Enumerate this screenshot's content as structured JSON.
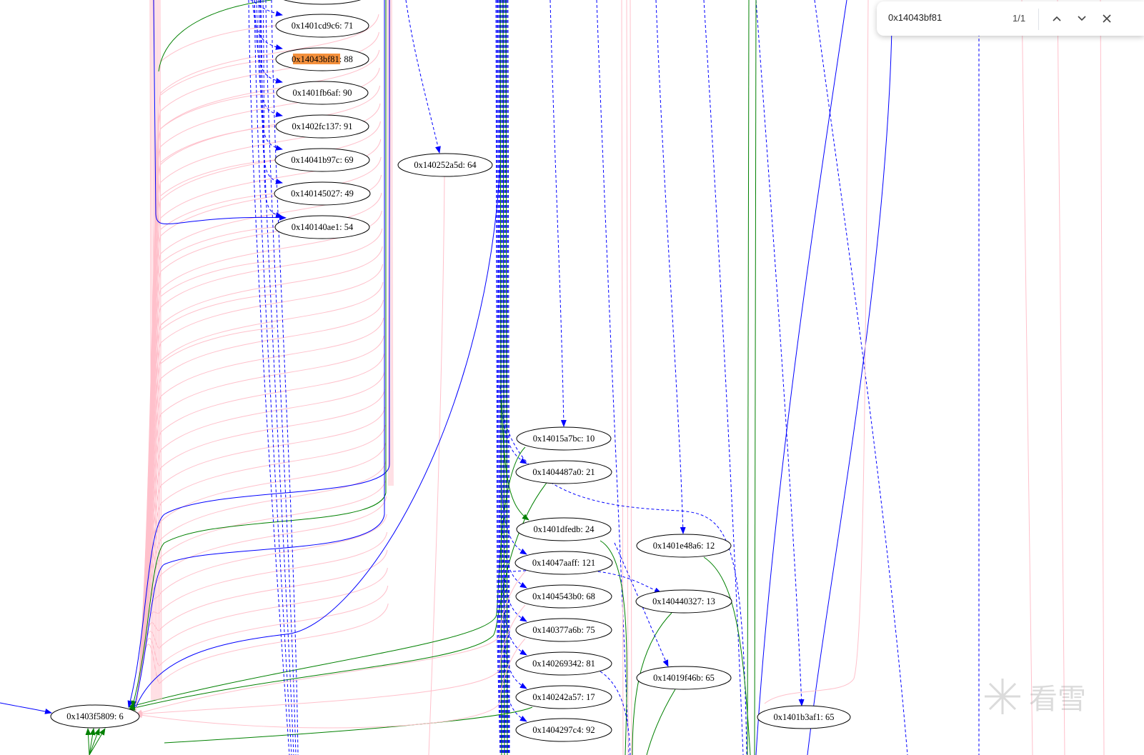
{
  "find_bar": {
    "query": "0x14043bf81",
    "match_count": "1/1",
    "icons": {
      "previous": "chevron-up-icon",
      "next": "chevron-down-icon",
      "close": "close-icon"
    }
  },
  "graph": {
    "highlight_color": "#f4903c",
    "edge_colors": {
      "call": "#0000ff",
      "branch": "#008000",
      "ref": "#ffc0cb"
    },
    "nodes": {
      "n71": {
        "addr": "0x1401cd9c6",
        "label": ": 71"
      },
      "n88": {
        "addr": "0x14043bf81",
        "label": ": 88"
      },
      "n90": {
        "addr": "0x1401fb6af",
        "label": ": 90"
      },
      "n91": {
        "addr": "0x1402fc137",
        "label": ": 91"
      },
      "n69": {
        "addr": "0x14041b97c",
        "label": ": 69"
      },
      "n49": {
        "addr": "0x140145027",
        "label": ": 49"
      },
      "n54": {
        "addr": "0x140140ae1",
        "label": ": 54"
      },
      "n64": {
        "addr": "0x140252a5d",
        "label": ": 64"
      },
      "n10": {
        "addr": "0x14015a7bc",
        "label": ": 10"
      },
      "n21": {
        "addr": "0x1404487a0",
        "label": ": 21"
      },
      "n24": {
        "addr": "0x1401dfedb",
        "label": ": 24"
      },
      "n121": {
        "addr": "0x14047aaff",
        "label": ": 121"
      },
      "n68": {
        "addr": "0x1404543b0",
        "label": ": 68"
      },
      "n75": {
        "addr": "0x140377a6b",
        "label": ": 75"
      },
      "n81": {
        "addr": "0x140269342",
        "label": ": 81"
      },
      "n17": {
        "addr": "0x140242a57",
        "label": ": 17"
      },
      "n92": {
        "addr": "0x1404297c4",
        "label": ": 92"
      },
      "n12": {
        "addr": "0x1401e48a6",
        "label": ": 12"
      },
      "n13": {
        "addr": "0x140440327",
        "label": ": 13"
      },
      "n65a": {
        "addr": "0x14019f46b",
        "label": ": 65"
      },
      "n65b": {
        "addr": "0x1401b3af1",
        "label": ": 65"
      },
      "n6": {
        "addr": "0x1403f5809",
        "label": ": 6"
      }
    }
  },
  "watermark": {
    "text": "看雪"
  }
}
